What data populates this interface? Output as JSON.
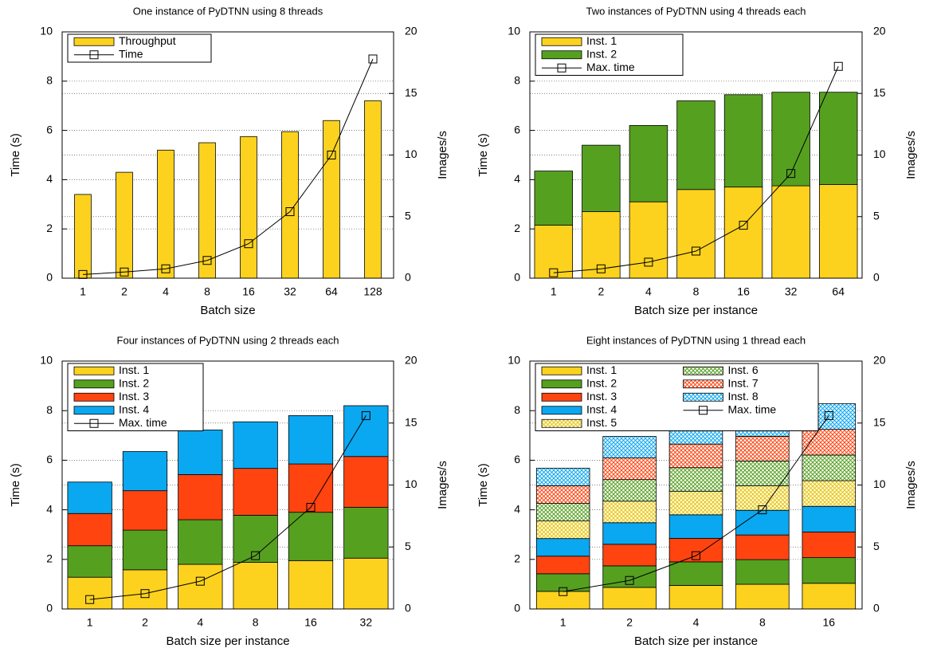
{
  "chart_data": [
    {
      "type": "bar",
      "title": "One instance of PyDTNN using 8 threads",
      "x_label": "Batch size",
      "y_label": "Time (s)",
      "y2_label": "Images/s",
      "categories": [
        "1",
        "2",
        "4",
        "8",
        "16",
        "32",
        "64",
        "128"
      ],
      "series": [
        {
          "name": "Throughput",
          "color": "#fcd21e",
          "axis": "y2",
          "values": [
            6.8,
            8.6,
            10.4,
            11.0,
            11.5,
            11.9,
            12.8,
            14.4
          ]
        },
        {
          "name": "Time",
          "color": "#000000",
          "type": "line",
          "values": [
            0.15,
            0.25,
            0.38,
            0.72,
            1.4,
            2.7,
            5.0,
            8.9
          ]
        }
      ],
      "ylim": [
        0,
        10
      ],
      "yticks": [
        0,
        2,
        4,
        6,
        8,
        10
      ],
      "y2lim": [
        0,
        20
      ],
      "y2ticks": [
        0,
        5,
        10,
        15,
        20
      ],
      "grid": true,
      "legend": "upper-left",
      "legend_columns": 1
    },
    {
      "type": "stacked_bar",
      "title": "Two instances of PyDTNN using 4 threads each",
      "x_label": "Batch size per instance",
      "y_label": "Time (s)",
      "y2_label": "Images/s",
      "categories": [
        "1",
        "2",
        "4",
        "8",
        "16",
        "32",
        "64"
      ],
      "series": [
        {
          "name": "Inst. 1",
          "color": "#fcd21e",
          "axis": "y2",
          "values": [
            4.3,
            5.4,
            6.2,
            7.2,
            7.4,
            7.5,
            7.6
          ]
        },
        {
          "name": "Inst. 2",
          "color": "#56a020",
          "axis": "y2",
          "values": [
            4.4,
            5.4,
            6.2,
            7.2,
            7.5,
            7.6,
            7.5
          ]
        },
        {
          "name": "Max. time",
          "color": "#000000",
          "type": "line",
          "values": [
            0.22,
            0.38,
            0.65,
            1.1,
            2.15,
            4.25,
            8.6
          ]
        }
      ],
      "ylim": [
        0,
        10
      ],
      "yticks": [
        0,
        2,
        4,
        6,
        8,
        10
      ],
      "y2lim": [
        0,
        20
      ],
      "y2ticks": [
        0,
        5,
        10,
        15,
        20
      ],
      "grid": true,
      "legend": "upper-left",
      "legend_columns": 1
    },
    {
      "type": "stacked_bar",
      "title": "Four instances of PyDTNN using 2 threads each",
      "x_label": "Batch size per instance",
      "y_label": "Time (s)",
      "y2_label": "Images/s",
      "categories": [
        "1",
        "2",
        "4",
        "8",
        "16",
        "32"
      ],
      "series": [
        {
          "name": "Inst. 1",
          "color": "#fcd21e",
          "axis": "y2",
          "values": [
            2.56,
            3.16,
            3.6,
            3.76,
            3.9,
            4.1
          ]
        },
        {
          "name": "Inst. 2",
          "color": "#56a020",
          "axis": "y2",
          "values": [
            2.54,
            3.2,
            3.6,
            3.8,
            3.9,
            4.1
          ]
        },
        {
          "name": "Inst. 3",
          "color": "#ff4410",
          "axis": "y2",
          "values": [
            2.6,
            3.18,
            3.64,
            3.78,
            3.9,
            4.1
          ]
        },
        {
          "name": "Inst. 4",
          "color": "#0aa8f0",
          "axis": "y2",
          "values": [
            2.54,
            3.16,
            3.6,
            3.76,
            3.9,
            4.1
          ]
        },
        {
          "name": "Max. time",
          "color": "#000000",
          "type": "line",
          "values": [
            0.38,
            0.62,
            1.12,
            2.15,
            4.1,
            7.8
          ]
        }
      ],
      "ylim": [
        0,
        10
      ],
      "yticks": [
        0,
        2,
        4,
        6,
        8,
        10
      ],
      "y2lim": [
        0,
        20
      ],
      "y2ticks": [
        0,
        5,
        10,
        15,
        20
      ],
      "grid": true,
      "legend": "upper-left",
      "legend_columns": 1
    },
    {
      "type": "stacked_bar",
      "title": "Eight instances of PyDTNN using 1 thread each",
      "x_label": "Batch size per instance",
      "y_label": "Time (s)",
      "y2_label": "Images/s",
      "categories": [
        "1",
        "2",
        "4",
        "8",
        "16"
      ],
      "series": [
        {
          "name": "Inst. 1",
          "color": "#fcd21e",
          "axis": "y2",
          "values": [
            1.42,
            1.74,
            1.9,
            1.99,
            2.07
          ]
        },
        {
          "name": "Inst. 2",
          "color": "#56a020",
          "axis": "y2",
          "values": [
            1.42,
            1.74,
            1.9,
            1.99,
            2.07
          ]
        },
        {
          "name": "Inst. 3",
          "color": "#ff4410",
          "axis": "y2",
          "values": [
            1.42,
            1.74,
            1.9,
            1.99,
            2.07
          ]
        },
        {
          "name": "Inst. 4",
          "color": "#0aa8f0",
          "axis": "y2",
          "values": [
            1.42,
            1.74,
            1.9,
            1.99,
            2.07
          ]
        },
        {
          "name": "Inst. 5",
          "color": "#e8c400",
          "axis": "y2",
          "hatched": true,
          "values": [
            1.42,
            1.74,
            1.9,
            1.99,
            2.07
          ]
        },
        {
          "name": "Inst. 6",
          "color": "#56a020",
          "axis": "y2",
          "hatched": true,
          "values": [
            1.42,
            1.74,
            1.9,
            1.99,
            2.07
          ]
        },
        {
          "name": "Inst. 7",
          "color": "#ff4410",
          "axis": "y2",
          "hatched": true,
          "values": [
            1.42,
            1.74,
            1.9,
            1.99,
            2.07
          ]
        },
        {
          "name": "Inst. 8",
          "color": "#0aa8f0",
          "axis": "y2",
          "hatched": true,
          "values": [
            1.42,
            1.74,
            1.9,
            1.99,
            2.07
          ]
        },
        {
          "name": "Max. time",
          "color": "#000000",
          "type": "line",
          "values": [
            0.7,
            1.15,
            2.15,
            4.0,
            7.8
          ]
        }
      ],
      "ylim": [
        0,
        10
      ],
      "yticks": [
        0,
        2,
        4,
        6,
        8,
        10
      ],
      "y2lim": [
        0,
        20
      ],
      "y2ticks": [
        0,
        5,
        10,
        15,
        20
      ],
      "grid": true,
      "legend": "upper-left",
      "legend_columns": 2
    }
  ]
}
